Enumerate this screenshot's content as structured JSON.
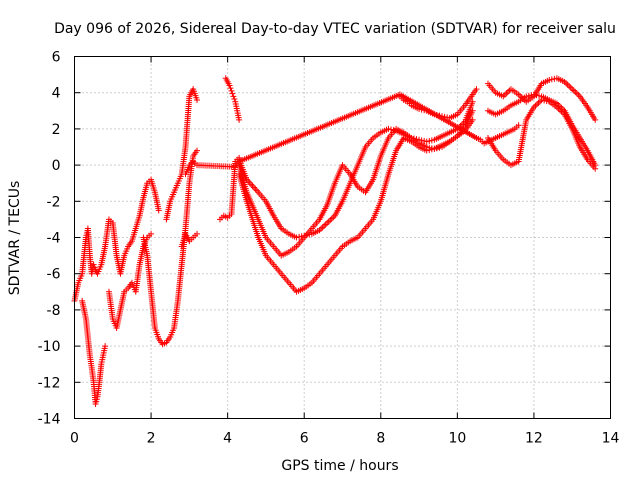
{
  "chart_data": {
    "type": "scatter",
    "title": "Day 096 of 2026, Sidereal Day-to-day VTEC variation (SDTVAR) for receiver salu",
    "xlabel": "GPS time / hours",
    "ylabel": "SDTVAR / TECUs",
    "xlim": [
      0,
      14
    ],
    "ylim": [
      -14,
      6
    ],
    "xticks": [
      0,
      2,
      4,
      6,
      8,
      10,
      12,
      14
    ],
    "yticks": [
      -14,
      -12,
      -10,
      -8,
      -6,
      -4,
      -2,
      0,
      2,
      4,
      6
    ],
    "grid": true,
    "marker": "+",
    "marker_color": "#ff0000",
    "series": [
      {
        "name": "s1",
        "x": [
          0.0,
          0.1,
          0.2,
          0.25,
          0.3,
          0.35,
          0.4,
          0.45,
          0.5,
          0.55,
          0.6,
          0.7,
          0.8,
          0.9,
          1.0,
          1.1,
          1.2,
          1.3,
          1.4,
          1.5,
          1.6,
          1.7,
          1.8,
          1.9,
          2.0,
          2.1,
          2.2
        ],
        "y": [
          -7.5,
          -6.5,
          -6.0,
          -5.0,
          -4.0,
          -3.5,
          -5.0,
          -6.0,
          -5.5,
          -5.8,
          -6.0,
          -5.5,
          -4.5,
          -3.0,
          -3.2,
          -5.0,
          -6.0,
          -5.0,
          -4.5,
          -4.2,
          -3.5,
          -2.8,
          -1.8,
          -1.0,
          -0.8,
          -1.5,
          -2.5
        ]
      },
      {
        "name": "s2",
        "x": [
          0.2,
          0.3,
          0.35,
          0.4,
          0.45,
          0.5,
          0.55,
          0.6,
          0.65,
          0.7,
          0.75,
          0.8
        ],
        "y": [
          -7.5,
          -8.5,
          -9.5,
          -10.5,
          -11.2,
          -12.0,
          -13.2,
          -12.8,
          -12.0,
          -11.0,
          -10.5,
          -10.0
        ]
      },
      {
        "name": "s3",
        "x": [
          0.9,
          1.0,
          1.1,
          1.2,
          1.3,
          1.4,
          1.5,
          1.6,
          1.7,
          1.8,
          1.9,
          2.0
        ],
        "y": [
          -7.0,
          -8.5,
          -9.0,
          -8.0,
          -7.0,
          -6.8,
          -6.5,
          -7.0,
          -5.5,
          -4.5,
          -4.0,
          -3.8
        ]
      },
      {
        "name": "s4",
        "x": [
          1.8,
          1.9,
          2.0,
          2.05,
          2.1,
          2.2,
          2.3,
          2.4,
          2.5,
          2.6,
          2.7,
          2.8,
          2.9,
          3.0,
          3.1,
          3.2
        ],
        "y": [
          -4.0,
          -5.0,
          -7.0,
          -8.0,
          -9.0,
          -9.6,
          -9.9,
          -9.8,
          -9.5,
          -9.0,
          -7.5,
          -5.5,
          -3.5,
          -1.0,
          0.5,
          0.8
        ]
      },
      {
        "name": "s5",
        "x": [
          2.4,
          2.5,
          2.6,
          2.7,
          2.8,
          2.9,
          3.0,
          3.1,
          3.2
        ],
        "y": [
          -3.0,
          -2.0,
          -1.5,
          -1.0,
          -0.5,
          1.0,
          3.8,
          4.2,
          3.6
        ]
      },
      {
        "name": "s6",
        "x": [
          2.8,
          2.9,
          3.0,
          3.1,
          3.2
        ],
        "y": [
          -4.5,
          -3.8,
          -4.2,
          -4.0,
          -3.8
        ]
      },
      {
        "name": "s7",
        "x": [
          3.8,
          3.9,
          4.0,
          4.1,
          4.2,
          4.3
        ],
        "y": [
          -3.0,
          -2.8,
          -2.9,
          -2.7,
          0.2,
          0.4
        ]
      },
      {
        "name": "s8",
        "x": [
          3.95,
          4.0,
          4.05,
          4.1,
          4.15,
          4.2,
          4.25,
          4.3
        ],
        "y": [
          4.8,
          4.6,
          4.4,
          4.1,
          3.8,
          3.5,
          3.0,
          2.5
        ]
      },
      {
        "name": "s9",
        "x": [
          4.3,
          4.5,
          4.8,
          5.0,
          5.2,
          5.4,
          5.6,
          5.8,
          6.0,
          6.2,
          6.4,
          6.6,
          6.8,
          7.0,
          7.2,
          7.4,
          7.6,
          7.8,
          8.0,
          8.2,
          8.4,
          8.6,
          8.8,
          9.0,
          9.2,
          9.4,
          9.6,
          9.8,
          10.0,
          10.2,
          10.4
        ],
        "y": [
          -0.5,
          -2.0,
          -4.0,
          -5.0,
          -5.5,
          -6.0,
          -6.5,
          -7.0,
          -6.8,
          -6.5,
          -6.0,
          -5.5,
          -5.0,
          -4.5,
          -4.2,
          -4.0,
          -3.5,
          -3.0,
          -2.0,
          -0.5,
          0.8,
          1.5,
          1.3,
          1.0,
          0.8,
          0.9,
          1.1,
          1.3,
          1.6,
          1.9,
          2.5
        ]
      },
      {
        "name": "s10",
        "x": [
          4.3,
          4.5,
          4.8,
          5.0,
          5.2,
          5.4,
          5.6,
          5.8,
          6.0,
          6.2,
          6.4,
          6.6,
          6.8,
          7.0,
          7.2,
          7.4,
          7.6,
          7.8,
          8.0,
          8.2,
          8.4,
          8.6,
          8.8,
          9.0,
          9.2,
          9.4,
          9.6,
          9.8,
          10.0,
          10.2,
          10.4
        ],
        "y": [
          0.0,
          -1.5,
          -3.0,
          -4.0,
          -4.5,
          -5.0,
          -4.8,
          -4.5,
          -4.0,
          -3.5,
          -3.0,
          -2.2,
          -1.0,
          0.0,
          -0.5,
          -1.2,
          -1.5,
          -0.8,
          0.5,
          1.5,
          2.0,
          1.8,
          1.5,
          1.2,
          1.0,
          0.9,
          1.0,
          1.3,
          1.6,
          2.1,
          3.0
        ]
      },
      {
        "name": "s11",
        "x": [
          4.3,
          4.5,
          4.8,
          5.0,
          5.2,
          5.4,
          5.6,
          5.8,
          6.0,
          6.2,
          6.4,
          6.6,
          6.8,
          7.0,
          7.2,
          7.4,
          7.6,
          7.8,
          8.0,
          8.2,
          8.4,
          8.6,
          8.8,
          9.0,
          9.2,
          9.4,
          9.6,
          9.8,
          10.0,
          10.2,
          10.4
        ],
        "y": [
          0.3,
          -0.8,
          -1.5,
          -2.0,
          -2.8,
          -3.5,
          -3.8,
          -4.0,
          -3.9,
          -3.8,
          -3.6,
          -3.2,
          -2.8,
          -2.0,
          -1.0,
          0.0,
          1.0,
          1.5,
          1.8,
          2.0,
          1.9,
          1.7,
          1.5,
          1.4,
          1.3,
          1.4,
          1.6,
          1.8,
          2.0,
          2.4,
          3.5
        ]
      },
      {
        "name": "s12",
        "x": [
          8.5,
          8.6,
          8.7,
          8.8,
          9.0,
          9.2,
          9.4,
          9.6,
          9.8,
          10.0,
          10.2,
          10.4,
          10.5
        ],
        "y": [
          3.8,
          3.6,
          3.5,
          3.3,
          3.1,
          3.0,
          2.8,
          2.7,
          2.6,
          2.8,
          3.3,
          3.9,
          4.2
        ]
      },
      {
        "name": "s13",
        "x": [
          10.8,
          11.0,
          11.2,
          11.4,
          11.6,
          11.8,
          12.0,
          12.2,
          12.4,
          12.6,
          12.8,
          13.0,
          13.2,
          13.4,
          13.6
        ],
        "y": [
          4.5,
          4.0,
          3.8,
          4.2,
          3.9,
          3.5,
          3.8,
          4.5,
          4.7,
          4.8,
          4.6,
          4.2,
          3.8,
          3.2,
          2.5
        ]
      },
      {
        "name": "s14",
        "x": [
          10.8,
          11.0,
          11.2,
          11.4,
          11.6,
          11.8,
          12.0,
          12.2,
          12.4,
          12.6,
          12.8,
          13.0,
          13.2,
          13.4,
          13.6
        ],
        "y": [
          3.0,
          2.8,
          3.0,
          3.3,
          3.5,
          3.8,
          3.9,
          3.8,
          3.6,
          3.4,
          3.0,
          2.2,
          1.5,
          0.8,
          0.0
        ]
      },
      {
        "name": "s15",
        "x": [
          10.8,
          11.0,
          11.2,
          11.4,
          11.6,
          11.8,
          12.0,
          12.2,
          12.4,
          12.6,
          12.8,
          13.0,
          13.2,
          13.4,
          13.6
        ],
        "y": [
          1.5,
          0.8,
          0.3,
          0.0,
          0.2,
          2.5,
          3.2,
          3.6,
          3.5,
          3.2,
          2.8,
          2.0,
          1.0,
          0.3,
          -0.2
        ]
      },
      {
        "name": "s16",
        "x": [
          2.9,
          3.0,
          3.1,
          3.2,
          4.2,
          4.3,
          8.5,
          10.5,
          10.6,
          10.7,
          11.5,
          11.6
        ],
        "y": [
          -0.5,
          0.0,
          0.2,
          0.0,
          -0.1,
          0.2,
          3.9,
          1.5,
          1.4,
          1.2,
          2.0,
          2.2
        ]
      }
    ]
  }
}
